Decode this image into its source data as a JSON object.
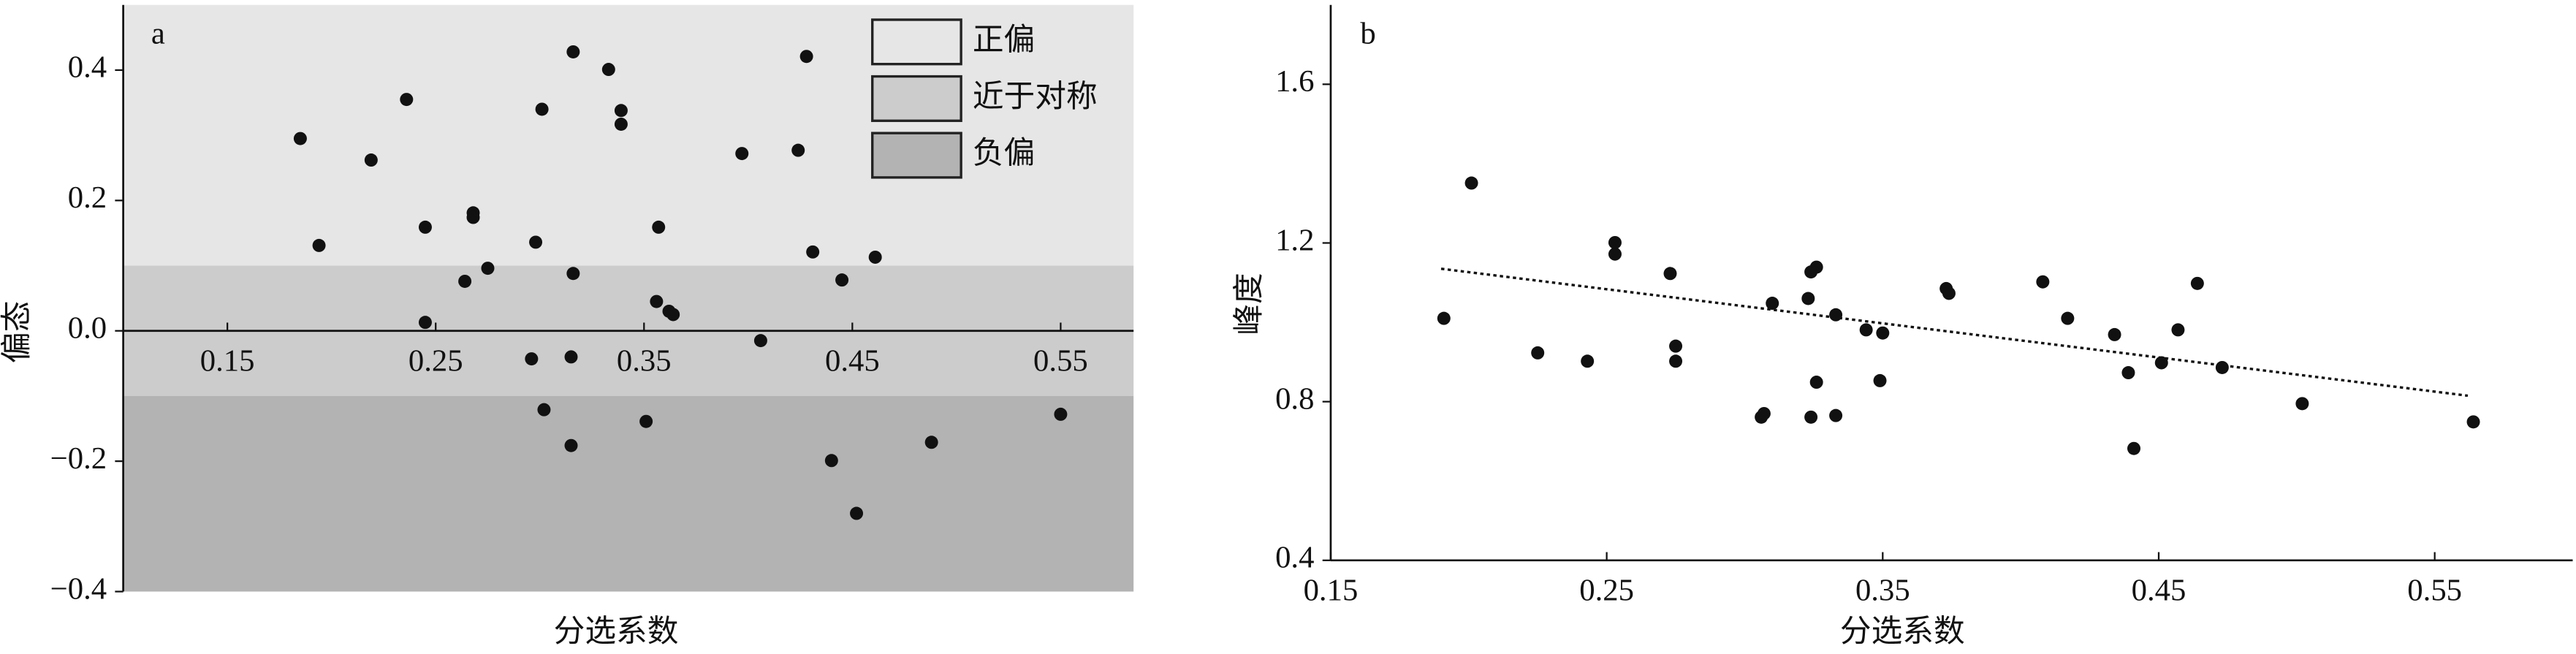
{
  "chart_data": [
    {
      "type": "scatter",
      "label": "a",
      "xlabel": "分选系数",
      "ylabel": "偏态",
      "color": "#111111",
      "xlim": [
        0.1,
        0.585
      ],
      "ylim": [
        -0.4,
        0.5
      ],
      "xticks": [
        0.15,
        0.25,
        0.35,
        0.45,
        0.55
      ],
      "yticks": [
        {
          "value": -0.4,
          "label": "−0.4"
        },
        {
          "value": -0.2,
          "label": "−0.2"
        },
        {
          "value": 0,
          "label": "0.0"
        },
        0.2,
        0.4
      ],
      "bands": [
        {
          "name": "正偏",
          "color": "#e6e6e6",
          "range": [
            0.1,
            0.5
          ]
        },
        {
          "name": "近于对称",
          "color": "#cccccc",
          "range": [
            -0.1,
            0.1
          ]
        },
        {
          "name": "负偏",
          "color": "#b3b3b3",
          "range": [
            -0.4,
            -0.1
          ]
        }
      ],
      "x": [
        0.185,
        0.194,
        0.219,
        0.236,
        0.245,
        0.245,
        0.264,
        0.268,
        0.268,
        0.275,
        0.296,
        0.298,
        0.301,
        0.302,
        0.315,
        0.315,
        0.316,
        0.316,
        0.333,
        0.339,
        0.339,
        0.351,
        0.356,
        0.357,
        0.362,
        0.364,
        0.397,
        0.406,
        0.424,
        0.428,
        0.431,
        0.44,
        0.445,
        0.452,
        0.461,
        0.488,
        0.55
      ],
      "y": [
        0.295,
        0.131,
        0.262,
        0.355,
        0.159,
        0.013,
        0.076,
        0.181,
        0.174,
        0.096,
        -0.043,
        0.136,
        0.34,
        -0.121,
        -0.176,
        -0.04,
        0.088,
        0.428,
        0.401,
        0.338,
        0.317,
        -0.139,
        0.045,
        0.159,
        0.03,
        0.025,
        0.272,
        -0.015,
        0.277,
        0.421,
        0.121,
        -0.199,
        0.078,
        -0.28,
        0.113,
        -0.171,
        -0.128
      ]
    },
    {
      "type": "scatter",
      "label": "b",
      "xlabel": "分选系数",
      "ylabel": "峰度",
      "color": "#111111",
      "xlim": [
        0.15,
        0.6
      ],
      "ylim": [
        0.4,
        1.8
      ],
      "xticks": [
        0.15,
        0.25,
        0.35,
        0.45,
        0.55
      ],
      "yticks": [
        0.4,
        0.8,
        1.2,
        1.6
      ],
      "trendline": {
        "x": [
          0.19,
          0.562
        ],
        "y": [
          1.135,
          0.815
        ]
      },
      "x": [
        0.191,
        0.201,
        0.225,
        0.243,
        0.253,
        0.253,
        0.273,
        0.275,
        0.275,
        0.306,
        0.307,
        0.31,
        0.323,
        0.324,
        0.324,
        0.326,
        0.326,
        0.333,
        0.333,
        0.344,
        0.35,
        0.349,
        0.373,
        0.374,
        0.408,
        0.417,
        0.434,
        0.439,
        0.441,
        0.451,
        0.457,
        0.464,
        0.473,
        0.502,
        0.564
      ],
      "y": [
        1.01,
        1.351,
        0.923,
        0.902,
        1.172,
        1.201,
        1.123,
        0.94,
        0.902,
        0.761,
        0.77,
        1.048,
        1.06,
        0.761,
        1.127,
        1.139,
        0.849,
        1.019,
        0.765,
        0.981,
        0.973,
        0.853,
        1.085,
        1.073,
        1.102,
        1.01,
        0.969,
        0.873,
        0.682,
        0.898,
        0.981,
        1.098,
        0.886,
        0.795,
        0.749
      ]
    }
  ]
}
